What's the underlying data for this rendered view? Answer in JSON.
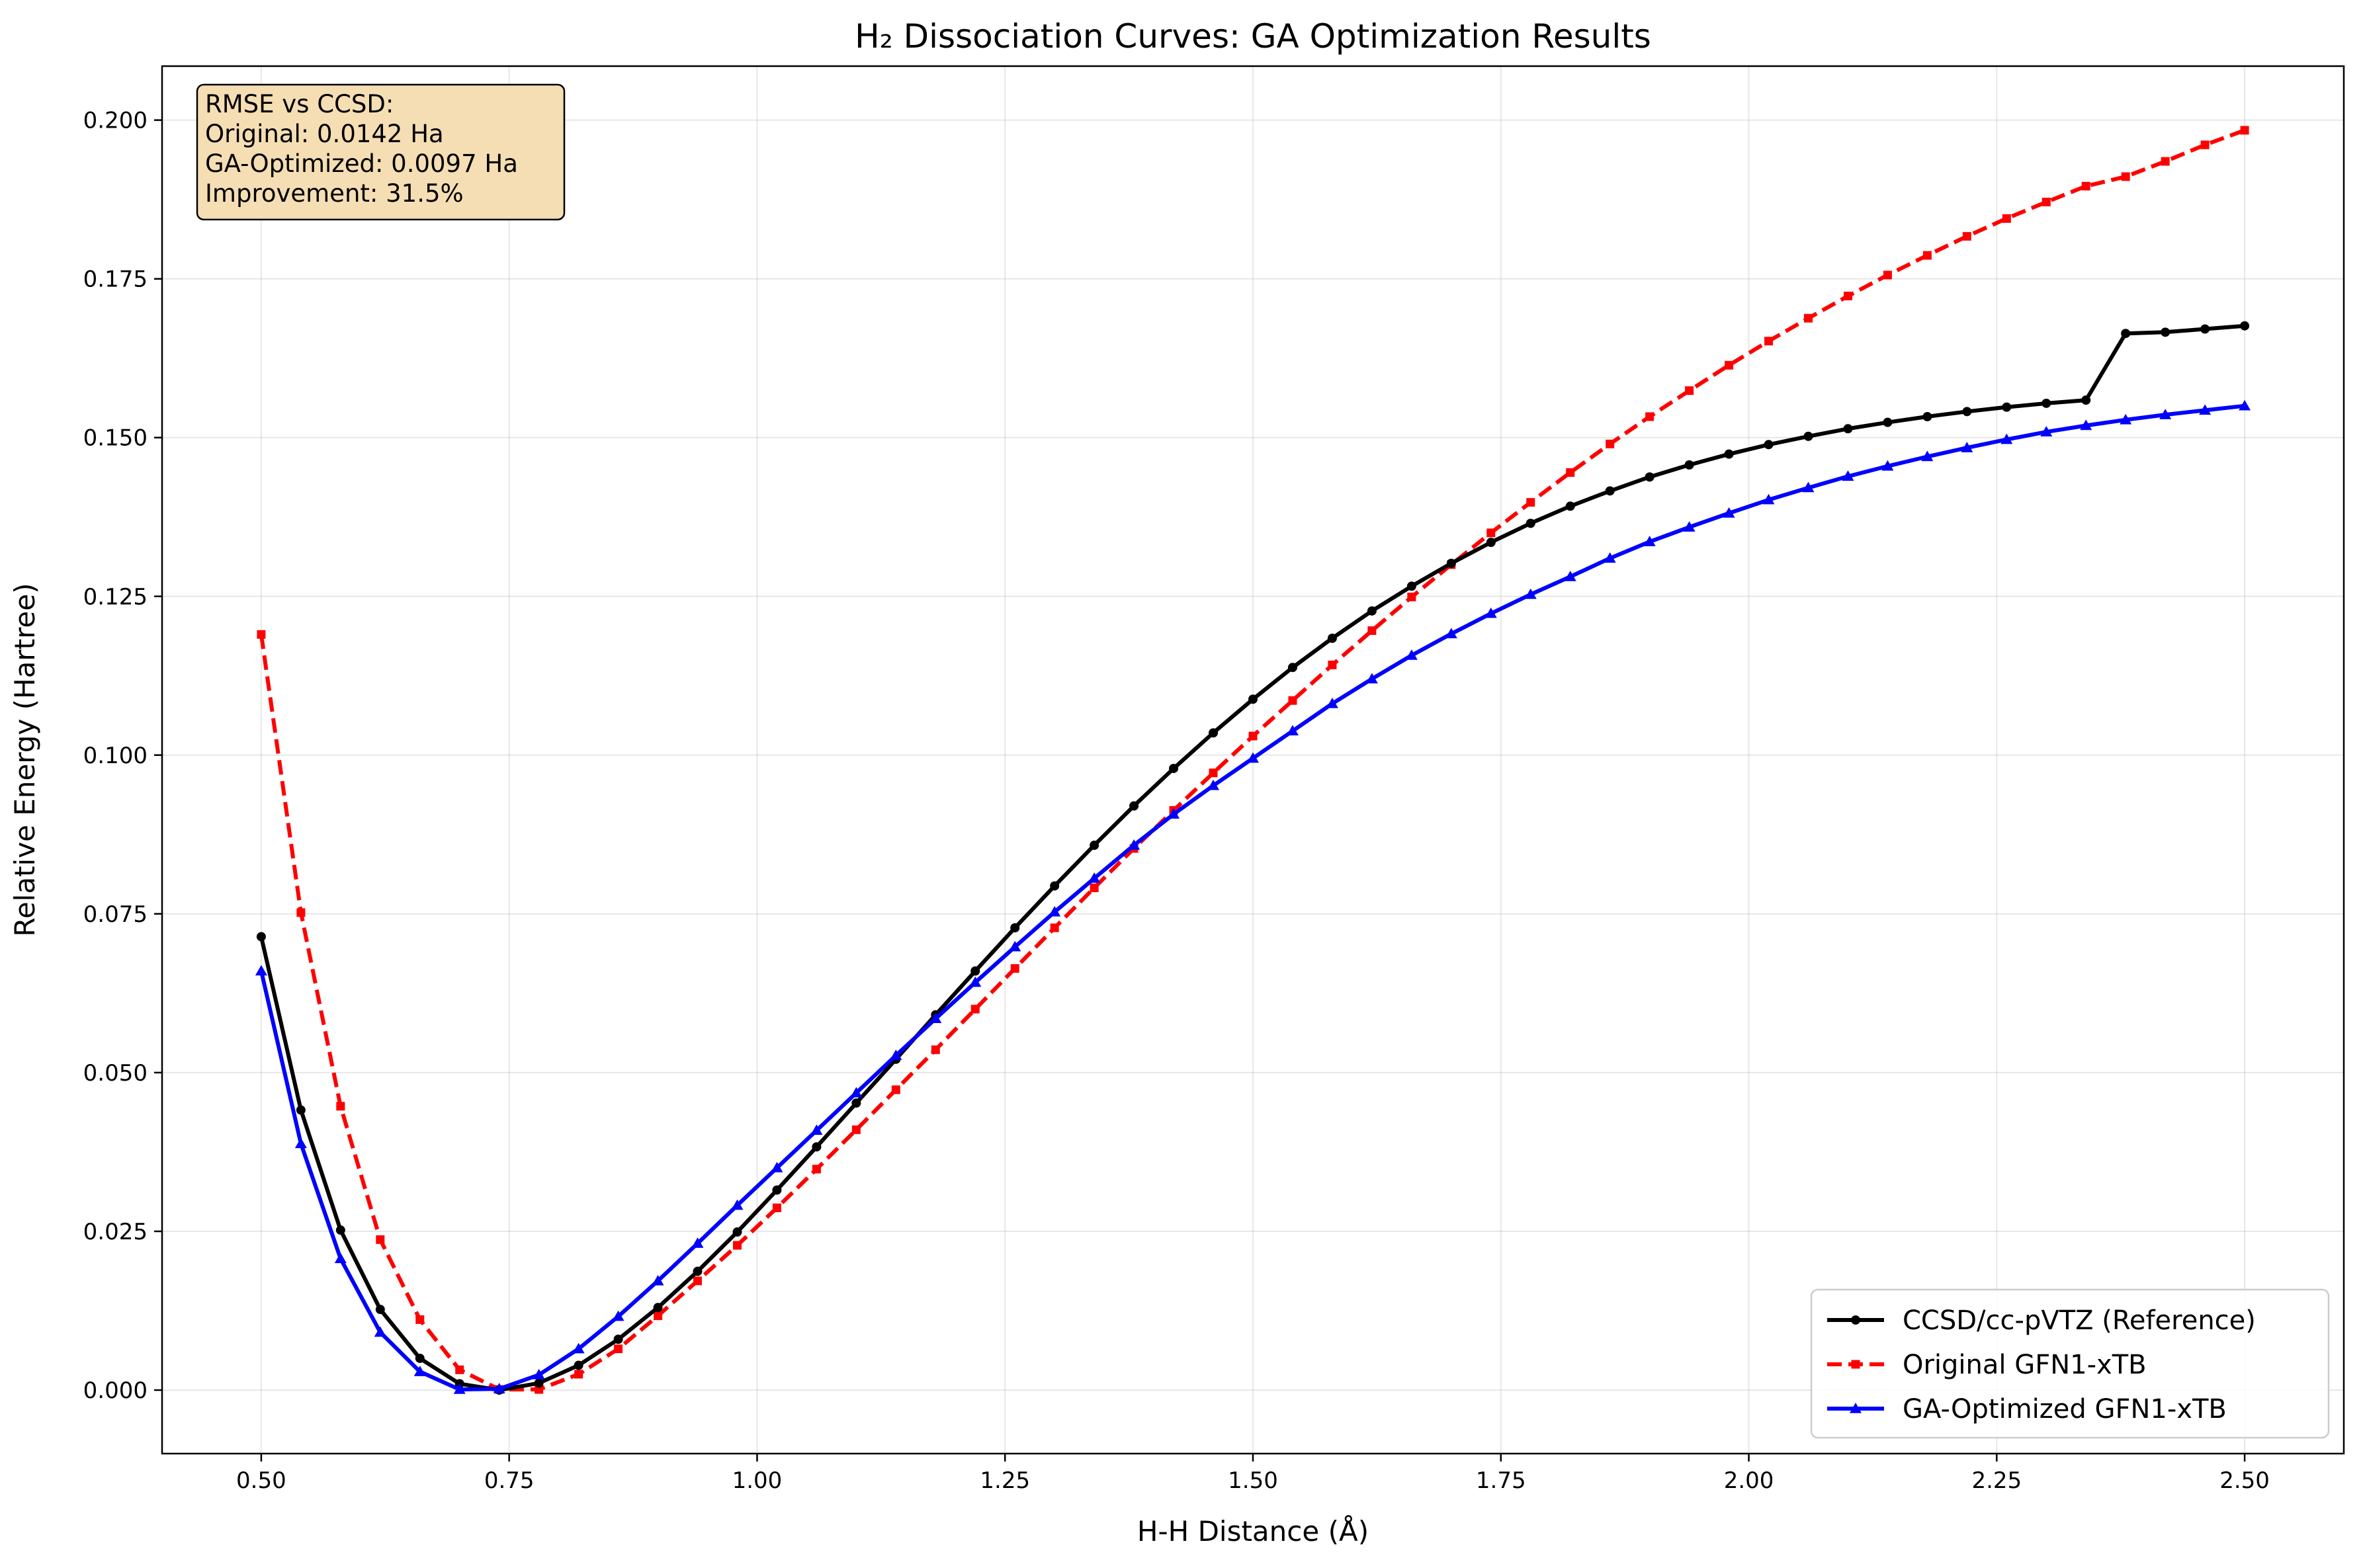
{
  "chart_data": {
    "type": "line",
    "title": "H₂ Dissociation Curves: GA Optimization Results",
    "xlabel": "H-H Distance (Å)",
    "ylabel": "Relative Energy (Hartree)",
    "xlim": [
      0.4,
      2.6
    ],
    "ylim": [
      -0.01,
      0.2085
    ],
    "xticks": [
      0.5,
      0.75,
      1.0,
      1.25,
      1.5,
      1.75,
      2.0,
      2.25,
      2.5
    ],
    "xtick_labels": [
      "0.50",
      "0.75",
      "1.00",
      "1.25",
      "1.50",
      "1.75",
      "2.00",
      "2.25",
      "2.50"
    ],
    "yticks": [
      0.0,
      0.025,
      0.05,
      0.075,
      0.1,
      0.125,
      0.15,
      0.175,
      0.2
    ],
    "ytick_labels": [
      "0.000",
      "0.025",
      "0.050",
      "0.075",
      "0.100",
      "0.125",
      "0.150",
      "0.175",
      "0.200"
    ],
    "grid": true,
    "legend_position": "bottom-right",
    "x": [
      0.5,
      0.54,
      0.58,
      0.62,
      0.66,
      0.7,
      0.74,
      0.78,
      0.82,
      0.86,
      0.9,
      0.94,
      0.98,
      1.02,
      1.06,
      1.1,
      1.14,
      1.18,
      1.22,
      1.26,
      1.3,
      1.34,
      1.38,
      1.42,
      1.46,
      1.5,
      1.54,
      1.58,
      1.62,
      1.66,
      1.7,
      1.74,
      1.78,
      1.82,
      1.86,
      1.9,
      1.94,
      1.98,
      2.02,
      2.06,
      2.1,
      2.14,
      2.18,
      2.22,
      2.26,
      2.3,
      2.34,
      2.38,
      2.42,
      2.46,
      2.5
    ],
    "series": [
      {
        "name": "CCSD/cc-pVTZ (Reference)",
        "color": "#000000",
        "dash": "solid",
        "marker": "circle",
        "values": [
          0.0714,
          0.0441,
          0.0252,
          0.0127,
          0.005,
          0.001,
          0.0,
          0.0011,
          0.0039,
          0.008,
          0.013,
          0.0187,
          0.0249,
          0.0315,
          0.0383,
          0.0452,
          0.0521,
          0.0591,
          0.066,
          0.0728,
          0.0794,
          0.0858,
          0.092,
          0.0979,
          0.1035,
          0.1088,
          0.1138,
          0.1184,
          0.1227,
          0.1266,
          0.1302,
          0.1335,
          0.1365,
          0.1392,
          0.1416,
          0.1438,
          0.1457,
          0.1474,
          0.1489,
          0.1502,
          0.1514,
          0.1524,
          0.1533,
          0.1541,
          0.1548,
          0.1554,
          0.1559,
          0.1664,
          0.1666,
          0.1671,
          0.1676
        ]
      },
      {
        "name": "Original GFN1-xTB",
        "color": "#ff0000",
        "dash": "dashed",
        "marker": "square",
        "values": [
          0.119,
          0.0752,
          0.0447,
          0.0237,
          0.0111,
          0.0032,
          0.0001,
          0.0001,
          0.0025,
          0.0065,
          0.0117,
          0.0172,
          0.0228,
          0.0287,
          0.0348,
          0.041,
          0.0473,
          0.0536,
          0.06,
          0.0664,
          0.0728,
          0.0791,
          0.0853,
          0.0913,
          0.0972,
          0.103,
          0.1086,
          0.1142,
          0.1196,
          0.1249,
          0.13,
          0.135,
          0.1398,
          0.1445,
          0.149,
          0.1533,
          0.1574,
          0.1614,
          0.1652,
          0.1688,
          0.1723,
          0.1756,
          0.1787,
          0.1817,
          0.1845,
          0.1871,
          0.1896,
          0.1911,
          0.1935,
          0.1961,
          0.1984
        ]
      },
      {
        "name": "GA-Optimized GFN1-xTB",
        "color": "#0000ff",
        "dash": "solid",
        "marker": "triangle",
        "values": [
          0.066,
          0.0388,
          0.0207,
          0.0091,
          0.0029,
          0.0001,
          0.0002,
          0.0024,
          0.0065,
          0.0116,
          0.0172,
          0.0231,
          0.0291,
          0.035,
          0.0409,
          0.0468,
          0.0527,
          0.0585,
          0.0642,
          0.0698,
          0.0753,
          0.0806,
          0.0858,
          0.0907,
          0.0952,
          0.0995,
          0.1038,
          0.1081,
          0.112,
          0.1157,
          0.1191,
          0.1223,
          0.1253,
          0.1281,
          0.131,
          0.1336,
          0.1359,
          0.1381,
          0.1402,
          0.1421,
          0.1439,
          0.1455,
          0.147,
          0.1484,
          0.1497,
          0.1509,
          0.1519,
          0.1528,
          0.1536,
          0.1543,
          0.155
        ]
      }
    ],
    "annotation": {
      "lines": [
        "RMSE vs CCSD:",
        "Original: 0.0142 Ha",
        "GA-Optimized: 0.0097 Ha",
        "Improvement: 31.5%"
      ],
      "box_color": "#f5deb3",
      "position": "top-left"
    }
  }
}
